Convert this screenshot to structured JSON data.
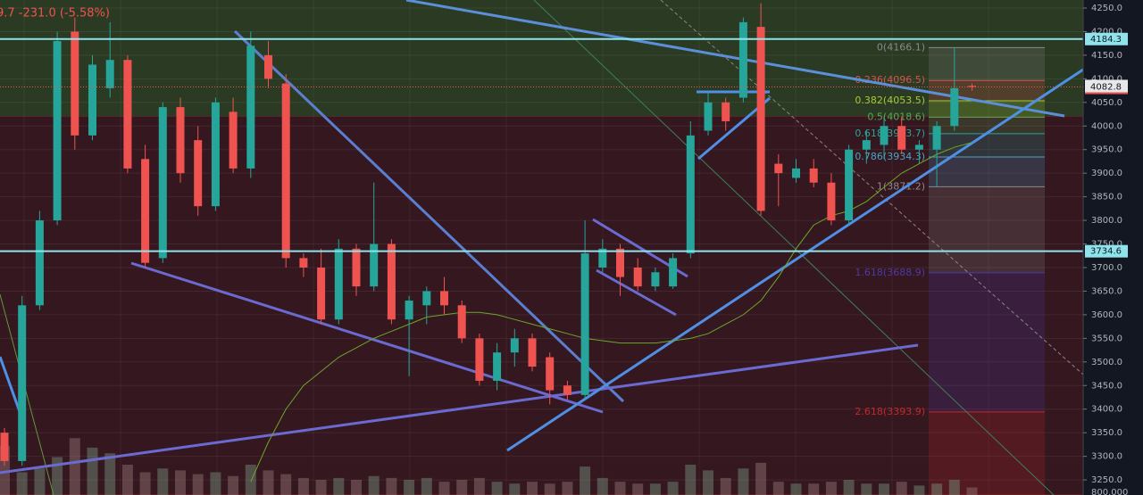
{
  "chart_data": {
    "type": "candlestick",
    "header_text": "9.7  -231.0 (-5.58%)",
    "open": [
      3350,
      3290,
      3620,
      3800,
      4200,
      3980,
      4080,
      4140,
      3930,
      3720,
      4040,
      3970,
      3830,
      4030,
      3910,
      4150,
      4090,
      3720,
      3700,
      3590,
      3740,
      3660,
      3750,
      3590,
      3620,
      3650,
      3620,
      3550,
      3460,
      3520,
      3550,
      3510,
      3450,
      3430,
      3700,
      3740,
      3700,
      3660,
      3660,
      3730,
      3990,
      4050,
      4060,
      4210,
      3920,
      3890,
      3910,
      3880,
      3800,
      3950,
      3960,
      4000,
      3950,
      3950,
      4000,
      4085
    ],
    "high": [
      3360,
      3640,
      3820,
      4200,
      4230,
      4150,
      4220,
      4150,
      3960,
      4050,
      4060,
      4000,
      4060,
      4060,
      4200,
      4180,
      4110,
      3730,
      3740,
      3760,
      3750,
      3880,
      3760,
      3640,
      3660,
      3680,
      3630,
      3560,
      3540,
      3570,
      3560,
      3520,
      3460,
      3800,
      3760,
      3750,
      3720,
      3700,
      3730,
      4010,
      4070,
      4060,
      4230,
      4260,
      3940,
      3930,
      3930,
      3900,
      3960,
      3990,
      4020,
      4020,
      3970,
      4010,
      4166,
      4090
    ],
    "low": [
      3280,
      3280,
      3610,
      3790,
      3950,
      3970,
      4060,
      3900,
      3700,
      3710,
      3880,
      3810,
      3820,
      3900,
      3890,
      4080,
      3700,
      3680,
      3580,
      3580,
      3640,
      3650,
      3580,
      3470,
      3580,
      3600,
      3540,
      3450,
      3440,
      3490,
      3480,
      3410,
      3420,
      3420,
      3690,
      3640,
      3650,
      3650,
      3655,
      3720,
      3980,
      3990,
      4050,
      3810,
      3830,
      3880,
      3870,
      3790,
      3790,
      3920,
      3930,
      3940,
      3920,
      3870,
      3990,
      4075
    ],
    "close": [
      3290,
      3620,
      3800,
      4180,
      3980,
      4130,
      4140,
      3910,
      3710,
      4040,
      3900,
      3830,
      4050,
      3910,
      4170,
      4100,
      3720,
      3700,
      3590,
      3740,
      3660,
      3750,
      3590,
      3630,
      3650,
      3620,
      3550,
      3460,
      3520,
      3550,
      3490,
      3440,
      3430,
      3730,
      3740,
      3680,
      3660,
      3690,
      3720,
      3980,
      4050,
      4010,
      4220,
      3820,
      3900,
      3910,
      3880,
      3800,
      3950,
      3970,
      4000,
      3950,
      3960,
      4000,
      4080,
      4082.8
    ],
    "volume": [
      260,
      120,
      140,
      200,
      300,
      250,
      220,
      160,
      120,
      140,
      130,
      110,
      120,
      100,
      160,
      130,
      110,
      90,
      80,
      90,
      80,
      100,
      90,
      80,
      90,
      70,
      80,
      90,
      70,
      60,
      70,
      60,
      70,
      150,
      90,
      70,
      60,
      60,
      70,
      160,
      130,
      90,
      140,
      170,
      70,
      60,
      60,
      70,
      80,
      60,
      60,
      70,
      50,
      60,
      80,
      40
    ],
    "volume_lim": [
      0,
      800
    ],
    "volume_axis_label": "800.000",
    "ma": [
      null,
      null,
      null,
      null,
      null,
      null,
      null,
      null,
      null,
      null,
      null,
      null,
      null,
      null,
      3246,
      3330,
      3400,
      3450,
      3480,
      3510,
      3530,
      3550,
      3565,
      3580,
      3595,
      3600,
      3605,
      3605,
      3600,
      3590,
      3580,
      3570,
      3560,
      3550,
      3545,
      3540,
      3540,
      3540,
      3545,
      3550,
      3560,
      3580,
      3600,
      3630,
      3680,
      3740,
      3790,
      3810,
      3820,
      3840,
      3870,
      3900,
      3920,
      3940,
      3955,
      3965
    ],
    "ylim": [
      3218,
      4267
    ],
    "yticks": [
      {
        "value": 3250,
        "label": "3250.0"
      },
      {
        "value": 3300,
        "label": "3300.0"
      },
      {
        "value": 3350,
        "label": "3350.0"
      },
      {
        "value": 3400,
        "label": "3400.0"
      },
      {
        "value": 3450,
        "label": "3450.0"
      },
      {
        "value": 3500,
        "label": "3500.0"
      },
      {
        "value": 3550,
        "label": "3550.0"
      },
      {
        "value": 3600,
        "label": "3600.0"
      },
      {
        "value": 3650,
        "label": "3650.0"
      },
      {
        "value": 3700,
        "label": "3700.0"
      },
      {
        "value": 3750,
        "label": "3750.0"
      },
      {
        "value": 3800,
        "label": "3800.0"
      },
      {
        "value": 3850,
        "label": "3850.0"
      },
      {
        "value": 3900,
        "label": "3900.0"
      },
      {
        "value": 3950,
        "label": "3950.0"
      },
      {
        "value": 4000,
        "label": "4000.0"
      },
      {
        "value": 4050,
        "label": "4050.0"
      },
      {
        "value": 4100,
        "label": "4100.0"
      },
      {
        "value": 4150,
        "label": "4150.0"
      },
      {
        "value": 4200,
        "label": "4200.0"
      },
      {
        "value": 4250,
        "label": "4250.0"
      }
    ],
    "grid": true,
    "up_color": "#26a69a",
    "down_color": "#ef5350",
    "hlines": [
      4184.3,
      3734.6
    ],
    "last_price": 4082.8,
    "zones": [
      {
        "from": 4020,
        "to": 4267,
        "color": "#2b3a22"
      },
      {
        "from": 3218,
        "to": 4020,
        "color": "#35171f"
      }
    ],
    "fib_levels": [
      {
        "value": 4166.1,
        "label": "0(4166.1)",
        "color": "#8a8a8a"
      },
      {
        "value": 4096.5,
        "label": "0.236(4096.5)",
        "color": "#d9534f"
      },
      {
        "value": 4053.5,
        "label": "0.382(4053.5)",
        "color": "#a6c83a"
      },
      {
        "value": 4018.6,
        "label": "0.5(4018.6)",
        "color": "#4caf50"
      },
      {
        "value": 3983.7,
        "label": "0.618(3983.7)",
        "color": "#26a69a"
      },
      {
        "value": 3934.3,
        "label": "0.786(3934.3)",
        "color": "#4aa3c8"
      },
      {
        "value": 3871.2,
        "label": "1(3871.2)",
        "color": "#8a8a8a"
      },
      {
        "value": 3688.9,
        "label": "1.618(3688.9)",
        "color": "#4b3aa8"
      },
      {
        "value": 3393.9,
        "label": "2.618(3393.9)",
        "color": "#c62828"
      }
    ]
  }
}
